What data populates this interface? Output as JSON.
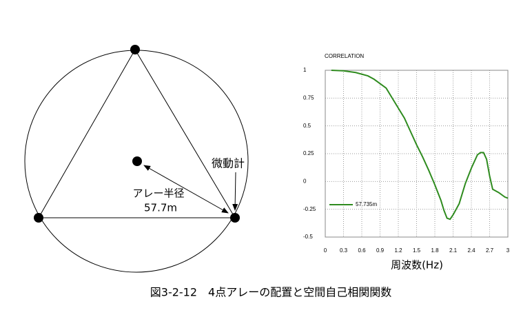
{
  "diagram": {
    "sensor_label": "微動計",
    "radius_label": "アレー半径",
    "radius_value": "57.7m"
  },
  "chart_data": {
    "type": "line",
    "title": "CORRELATION",
    "x_label": "周波数(Hz)",
    "x": [
      0.1,
      0.3,
      0.5,
      0.7,
      0.8,
      0.9,
      1.0,
      1.1,
      1.2,
      1.3,
      1.4,
      1.5,
      1.6,
      1.7,
      1.8,
      1.9,
      1.95,
      2.0,
      2.05,
      2.1,
      2.2,
      2.3,
      2.4,
      2.5,
      2.55,
      2.6,
      2.65,
      2.7,
      2.75,
      2.85,
      2.95,
      3.0
    ],
    "series": [
      {
        "name": "57.735m",
        "color": "#2e8b1e",
        "values": [
          1.0,
          0.995,
          0.98,
          0.95,
          0.92,
          0.88,
          0.84,
          0.75,
          0.66,
          0.57,
          0.45,
          0.33,
          0.22,
          0.1,
          -0.03,
          -0.17,
          -0.26,
          -0.33,
          -0.34,
          -0.3,
          -0.2,
          -0.02,
          0.12,
          0.24,
          0.26,
          0.26,
          0.2,
          0.05,
          -0.07,
          -0.1,
          -0.14,
          -0.15
        ]
      }
    ],
    "xlim": [
      0,
      3
    ],
    "xticks": [
      0,
      0.3,
      0.6,
      0.9,
      1.2,
      1.5,
      1.8,
      2.1,
      2.4,
      2.7,
      3
    ],
    "ylim": [
      -0.5,
      1
    ],
    "yticks": [
      -0.5,
      -0.25,
      0,
      0.25,
      0.5,
      0.75,
      1
    ],
    "grid": true,
    "legend": "lower-left"
  },
  "caption": "図3-2-12　4点アレーの配置と空間自己相関関数"
}
